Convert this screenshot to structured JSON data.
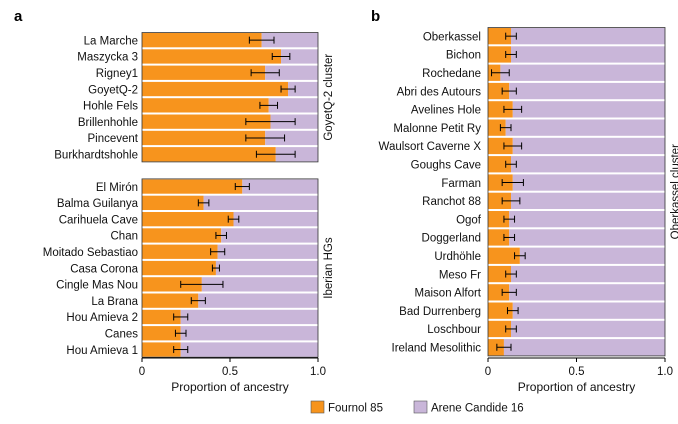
{
  "colors": {
    "fournol": "#f7941d",
    "arene": "#c9b6d9",
    "error_bar": "#000000",
    "panel_bg": "#ffffff"
  },
  "legend": {
    "items": [
      "Fournol 85",
      "Arene Candide 16"
    ]
  },
  "chart_data": [
    {
      "type": "bar",
      "orientation": "horizontal",
      "stacked": true,
      "panel_label": "a",
      "xlabel": "Proportion of ancestry",
      "xlim": [
        0,
        1
      ],
      "xticks": [
        "0",
        "0.5",
        "1.0"
      ],
      "series": [
        {
          "name": "Fournol 85"
        },
        {
          "name": "Arene Candide 16"
        }
      ],
      "groups": [
        {
          "name": "GoyetQ-2 cluster",
          "categories": [
            "La Marche",
            "Maszycka 3",
            "Rigney1",
            "GoyetQ-2",
            "Hohle Fels",
            "Brillenhohle",
            "Pincevent",
            "Burkhardtshohle"
          ],
          "fournol": [
            0.68,
            0.79,
            0.7,
            0.83,
            0.72,
            0.73,
            0.7,
            0.76
          ],
          "error": [
            0.07,
            0.05,
            0.08,
            0.04,
            0.05,
            0.14,
            0.11,
            0.11
          ]
        },
        {
          "name": "Iberian HGs",
          "categories": [
            "El Mirón",
            "Balma Guilanya",
            "Carihuela Cave",
            "Chan",
            "Moitado Sebastiao",
            "Casa Corona",
            "Cingle Mas Nou",
            "La Brana",
            "Hou Amieva 2",
            "Canes",
            "Hou Amieva 1"
          ],
          "fournol": [
            0.57,
            0.35,
            0.52,
            0.45,
            0.43,
            0.42,
            0.34,
            0.32,
            0.22,
            0.22,
            0.22
          ],
          "error": [
            0.04,
            0.03,
            0.03,
            0.03,
            0.04,
            0.02,
            0.12,
            0.04,
            0.04,
            0.03,
            0.04
          ]
        }
      ]
    },
    {
      "type": "bar",
      "orientation": "horizontal",
      "stacked": true,
      "panel_label": "b",
      "xlabel": "Proportion of ancestry",
      "xlim": [
        0,
        1
      ],
      "xticks": [
        "0",
        "0.5",
        "1.0"
      ],
      "series": [
        {
          "name": "Fournol 85"
        },
        {
          "name": "Arene Candide 16"
        }
      ],
      "groups": [
        {
          "name": "Oberkassel cluster",
          "categories": [
            "Oberkassel",
            "Bichon",
            "Rochedane",
            "Abri des Autours",
            "Avelines Hole",
            "Malonne Petit Ry",
            "Waulsort Caverne X",
            "Goughs Cave",
            "Farman",
            "Ranchot 88",
            "Ogof",
            "Doggerland",
            "Urdhöhle",
            "Meso Fr",
            "Maison Alfort",
            "Bad Durrenberg",
            "Loschbour",
            "Ireland Mesolithic"
          ],
          "fournol": [
            0.13,
            0.13,
            0.07,
            0.12,
            0.14,
            0.1,
            0.14,
            0.13,
            0.14,
            0.13,
            0.12,
            0.12,
            0.18,
            0.13,
            0.12,
            0.14,
            0.13,
            0.09
          ],
          "error": [
            0.03,
            0.03,
            0.05,
            0.04,
            0.05,
            0.03,
            0.05,
            0.03,
            0.06,
            0.05,
            0.03,
            0.03,
            0.03,
            0.03,
            0.04,
            0.03,
            0.03,
            0.04
          ]
        }
      ]
    }
  ]
}
